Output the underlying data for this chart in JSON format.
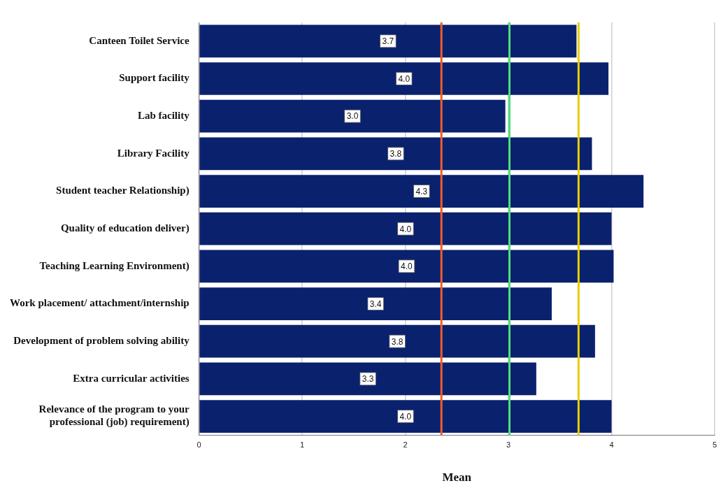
{
  "chart_data": {
    "type": "bar",
    "orientation": "horizontal",
    "xlabel": "Mean",
    "categories": [
      "Canteen Toilet Service",
      "Support facility",
      "Lab facility",
      "Library Facility",
      "Student teacher Relationship)",
      "Quality of education deliver)",
      "Teaching Learning Environment)",
      "Work placement/ attachment/internship",
      "Development of problem solving ability",
      "Extra curricular activities",
      "Relevance of the program to your professional (job) requirement)"
    ],
    "values": [
      3.66,
      3.97,
      2.97,
      3.81,
      4.31,
      4.0,
      4.02,
      3.42,
      3.84,
      3.27,
      4.0
    ],
    "value_labels": [
      "3.7",
      "4.0",
      "3.0",
      "3.8",
      "4.3",
      "4.0",
      "4.0",
      "3.4",
      "3.8",
      "3.3",
      "4.0"
    ],
    "color": "#0a216e",
    "xlim": [
      0,
      5
    ],
    "xticks": [
      0,
      1,
      2,
      3,
      4,
      5
    ],
    "grid": "x",
    "ref_lines": [
      {
        "axis": "x",
        "value": 2.35,
        "color": "#ee5f2a"
      },
      {
        "axis": "x",
        "value": 3.01,
        "color": "#4fe07c"
      },
      {
        "axis": "x",
        "value": 3.68,
        "color": "#e6cf00"
      }
    ]
  }
}
